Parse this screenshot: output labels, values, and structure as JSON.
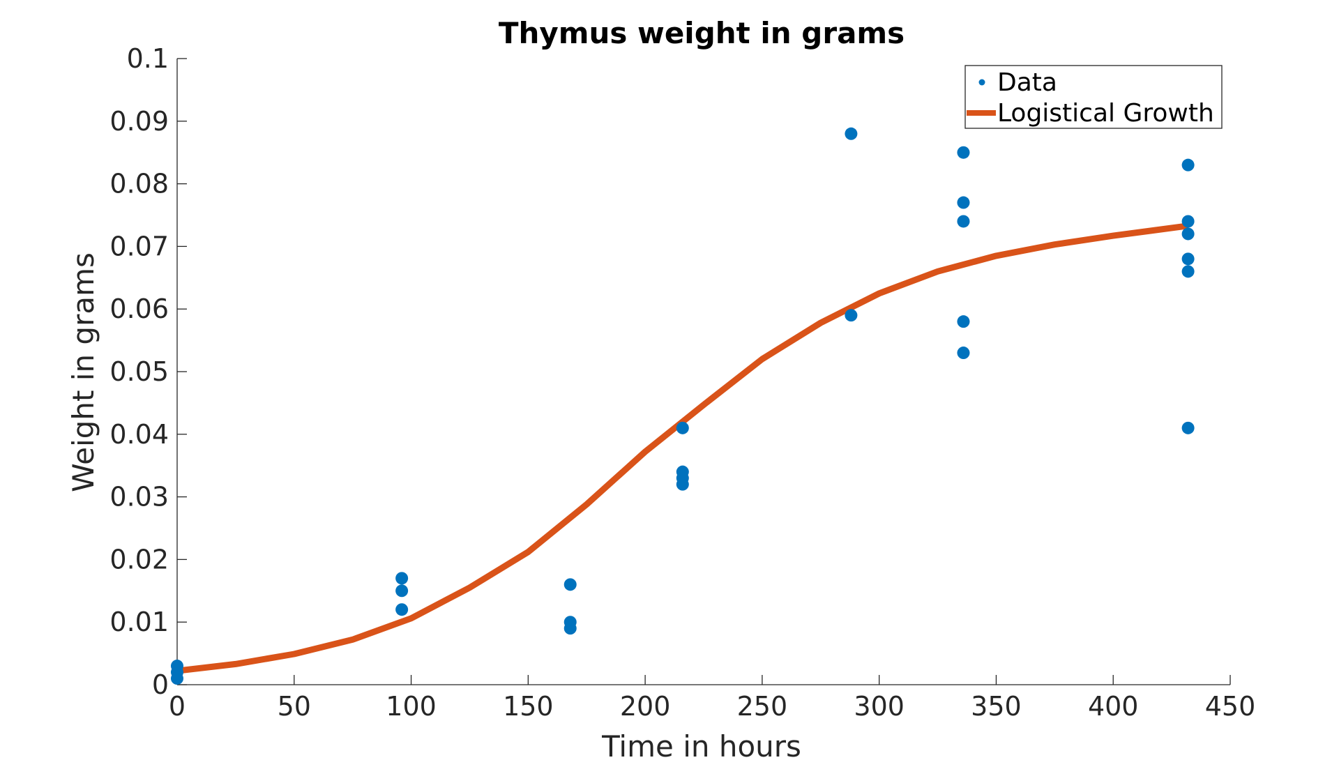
{
  "chart_data": {
    "type": "scatter",
    "title": "Thymus weight in grams",
    "xlabel": "Time in hours",
    "ylabel": "Weight in grams",
    "xlim": [
      0,
      450
    ],
    "ylim": [
      0,
      0.1
    ],
    "xticks": [
      0,
      50,
      100,
      150,
      200,
      250,
      300,
      350,
      400,
      450
    ],
    "xtick_labels": [
      "0",
      "50",
      "100",
      "150",
      "200",
      "250",
      "300",
      "350",
      "400",
      "450"
    ],
    "yticks": [
      0,
      0.01,
      0.02,
      0.03,
      0.04,
      0.05,
      0.06,
      0.07,
      0.08,
      0.09,
      0.1
    ],
    "ytick_labels": [
      "0",
      "0.01",
      "0.02",
      "0.03",
      "0.04",
      "0.05",
      "0.06",
      "0.07",
      "0.08",
      "0.09",
      "0.1"
    ],
    "grid": false,
    "legend_position": "top-right",
    "series": [
      {
        "name": "Data",
        "kind": "scatter",
        "color": "#0072BD",
        "points": [
          {
            "x": 0,
            "y": 0.003
          },
          {
            "x": 0,
            "y": 0.002
          },
          {
            "x": 0,
            "y": 0.001
          },
          {
            "x": 96,
            "y": 0.017
          },
          {
            "x": 96,
            "y": 0.015
          },
          {
            "x": 96,
            "y": 0.012
          },
          {
            "x": 168,
            "y": 0.016
          },
          {
            "x": 168,
            "y": 0.01
          },
          {
            "x": 168,
            "y": 0.009
          },
          {
            "x": 216,
            "y": 0.041
          },
          {
            "x": 216,
            "y": 0.034
          },
          {
            "x": 216,
            "y": 0.033
          },
          {
            "x": 216,
            "y": 0.032
          },
          {
            "x": 288,
            "y": 0.088
          },
          {
            "x": 288,
            "y": 0.059
          },
          {
            "x": 336,
            "y": 0.085
          },
          {
            "x": 336,
            "y": 0.077
          },
          {
            "x": 336,
            "y": 0.074
          },
          {
            "x": 336,
            "y": 0.058
          },
          {
            "x": 336,
            "y": 0.053
          },
          {
            "x": 432,
            "y": 0.083
          },
          {
            "x": 432,
            "y": 0.074
          },
          {
            "x": 432,
            "y": 0.072
          },
          {
            "x": 432,
            "y": 0.068
          },
          {
            "x": 432,
            "y": 0.066
          },
          {
            "x": 432,
            "y": 0.041
          }
        ]
      },
      {
        "name": "Logistical Growth",
        "kind": "line",
        "color": "#D95319",
        "points": [
          {
            "x": 0,
            "y": 0.0022
          },
          {
            "x": 25,
            "y": 0.0033
          },
          {
            "x": 50,
            "y": 0.0049
          },
          {
            "x": 75,
            "y": 0.0072
          },
          {
            "x": 100,
            "y": 0.0106
          },
          {
            "x": 125,
            "y": 0.0155
          },
          {
            "x": 150,
            "y": 0.0212
          },
          {
            "x": 175,
            "y": 0.0288
          },
          {
            "x": 200,
            "y": 0.0372
          },
          {
            "x": 225,
            "y": 0.0447
          },
          {
            "x": 250,
            "y": 0.052
          },
          {
            "x": 275,
            "y": 0.0578
          },
          {
            "x": 300,
            "y": 0.0625
          },
          {
            "x": 325,
            "y": 0.066
          },
          {
            "x": 350,
            "y": 0.0685
          },
          {
            "x": 375,
            "y": 0.0703
          },
          {
            "x": 400,
            "y": 0.0717
          },
          {
            "x": 432,
            "y": 0.0733
          }
        ]
      }
    ]
  }
}
